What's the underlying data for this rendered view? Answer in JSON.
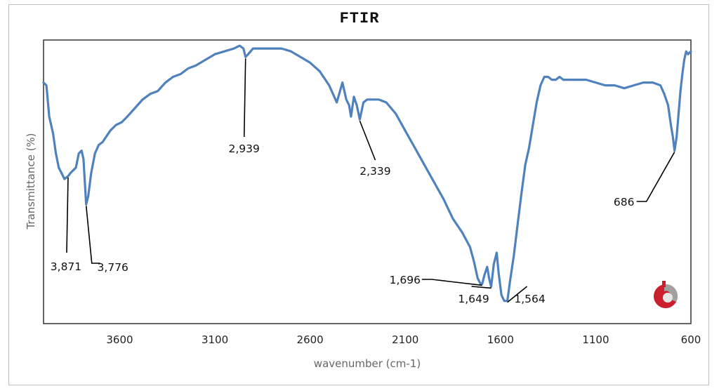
{
  "chart_data": {
    "type": "line",
    "title": "FTIR",
    "xlabel": "wavenumber (cm-1)",
    "ylabel": "Transmittance (%)",
    "xlim": [
      4000,
      600
    ],
    "x_reversed": true,
    "ylim": [
      0,
      100
    ],
    "y_tick_labels_shown": false,
    "grid": false,
    "legend": "none",
    "x_ticks": [
      3600,
      3100,
      2600,
      2100,
      1600,
      1100,
      600
    ],
    "x_tick_labels": [
      "3600",
      "3100",
      "2600",
      "2100",
      "1600",
      "1100",
      "600"
    ],
    "line_color": "#4f81bd",
    "series": [
      {
        "x": [
          4000,
          3985,
          3970,
          3950,
          3935,
          3920,
          3905,
          3890,
          3871,
          3860,
          3845,
          3830,
          3815,
          3800,
          3790,
          3776,
          3765,
          3750,
          3730,
          3710,
          3690,
          3670,
          3650,
          3620,
          3590,
          3560,
          3520,
          3480,
          3440,
          3400,
          3360,
          3320,
          3280,
          3240,
          3200,
          3150,
          3100,
          3050,
          3000,
          2970,
          2950,
          2939,
          2925,
          2900,
          2850,
          2800,
          2750,
          2700,
          2650,
          2600,
          2550,
          2500,
          2460,
          2430,
          2410,
          2395,
          2385,
          2370,
          2355,
          2339,
          2320,
          2300,
          2270,
          2240,
          2200,
          2150,
          2100,
          2050,
          2000,
          1950,
          1900,
          1850,
          1800,
          1760,
          1740,
          1720,
          1705,
          1696,
          1685,
          1670,
          1660,
          1649,
          1635,
          1620,
          1610,
          1595,
          1580,
          1564,
          1550,
          1530,
          1510,
          1490,
          1470,
          1450,
          1430,
          1410,
          1390,
          1370,
          1350,
          1330,
          1310,
          1290,
          1270,
          1250,
          1200,
          1150,
          1100,
          1050,
          1000,
          950,
          900,
          850,
          800,
          760,
          740,
          720,
          705,
          695,
          686,
          675,
          665,
          655,
          645,
          635,
          625,
          615,
          600
        ],
        "y": [
          85,
          84,
          73,
          67,
          60,
          55,
          53,
          51,
          52,
          53,
          54,
          55,
          60,
          61,
          58,
          42,
          45,
          53,
          60,
          63,
          64,
          66,
          68,
          70,
          71,
          73,
          76,
          79,
          81,
          82,
          85,
          87,
          88,
          90,
          91,
          93,
          95,
          96,
          97,
          98,
          97,
          94,
          95,
          97,
          97,
          97,
          97,
          96,
          94,
          92,
          89,
          84,
          78,
          85,
          79,
          77,
          73,
          80,
          77,
          72,
          78,
          79,
          79,
          79,
          78,
          74,
          68,
          62,
          56,
          50,
          44,
          37,
          32,
          27,
          22,
          16,
          14,
          14,
          17,
          20,
          16,
          13,
          21,
          25,
          18,
          10,
          8,
          8,
          15,
          24,
          35,
          46,
          56,
          62,
          70,
          78,
          84,
          87,
          87,
          86,
          86,
          87,
          86,
          86,
          86,
          86,
          85,
          84,
          84,
          83,
          84,
          85,
          85,
          84,
          81,
          77,
          70,
          66,
          61,
          66,
          74,
          82,
          88,
          93,
          96,
          95,
          96
        ]
      }
    ],
    "annotations": [
      {
        "label": "3,871",
        "x": 3871
      },
      {
        "label": "3,776",
        "x": 3776
      },
      {
        "label": "2,939",
        "x": 2939
      },
      {
        "label": "2,339",
        "x": 2339
      },
      {
        "label": "1,696",
        "x": 1696
      },
      {
        "label": "1,649",
        "x": 1649
      },
      {
        "label": "1,564",
        "x": 1564
      },
      {
        "label": "686",
        "x": 686
      }
    ]
  },
  "logo": {
    "name": "publisher-logo-icon",
    "colors": [
      "#cc1f2d",
      "#a0a0a0"
    ]
  }
}
